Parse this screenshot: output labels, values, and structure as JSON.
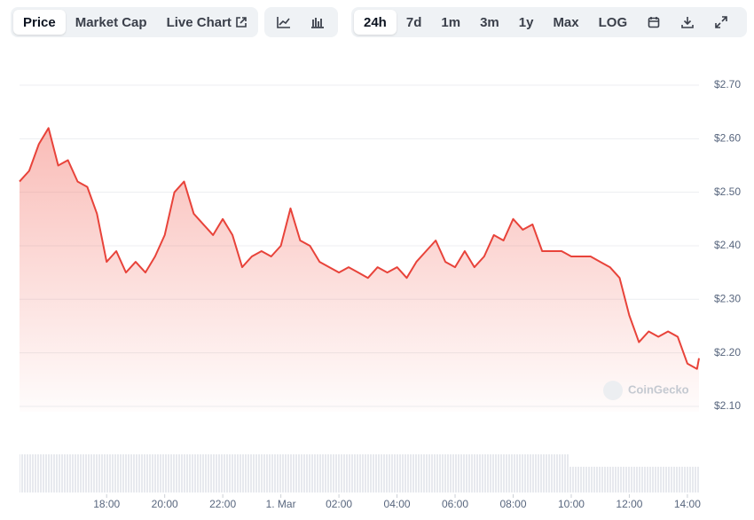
{
  "toolbar": {
    "view_tabs": [
      "Price",
      "Market Cap",
      "Live Chart"
    ],
    "ranges": [
      "24h",
      "7d",
      "1m",
      "3m",
      "1y",
      "Max",
      "LOG"
    ]
  },
  "chart_data": {
    "type": "line",
    "watermark": "CoinGecko",
    "x": [
      "15:00",
      "15:20",
      "15:40",
      "16:00",
      "16:20",
      "16:40",
      "17:00",
      "17:20",
      "17:40",
      "18:00",
      "18:20",
      "18:40",
      "19:00",
      "19:20",
      "19:40",
      "20:00",
      "20:20",
      "20:40",
      "21:00",
      "21:20",
      "21:40",
      "22:00",
      "22:20",
      "22:40",
      "23:00",
      "23:20",
      "23:40",
      "00:00",
      "00:20",
      "00:40",
      "01:00",
      "01:20",
      "01:40",
      "02:00",
      "02:20",
      "02:40",
      "03:00",
      "03:20",
      "03:40",
      "04:00",
      "04:20",
      "04:40",
      "05:00",
      "05:20",
      "05:40",
      "06:00",
      "06:20",
      "06:40",
      "07:00",
      "07:20",
      "07:40",
      "08:00",
      "08:20",
      "08:40",
      "09:00",
      "09:20",
      "09:40",
      "10:00",
      "10:20",
      "10:40",
      "11:00",
      "11:20",
      "11:40",
      "12:00",
      "12:20",
      "12:40",
      "13:00",
      "13:20",
      "13:40",
      "14:00",
      "14:20",
      "14:24"
    ],
    "series": [
      {
        "name": "Price",
        "color": "#e8433a",
        "values": [
          2.52,
          2.54,
          2.59,
          2.62,
          2.55,
          2.56,
          2.52,
          2.51,
          2.46,
          2.37,
          2.39,
          2.35,
          2.37,
          2.35,
          2.38,
          2.42,
          2.5,
          2.52,
          2.46,
          2.44,
          2.42,
          2.45,
          2.42,
          2.36,
          2.38,
          2.39,
          2.38,
          2.4,
          2.47,
          2.41,
          2.4,
          2.37,
          2.36,
          2.35,
          2.36,
          2.35,
          2.34,
          2.36,
          2.35,
          2.36,
          2.34,
          2.37,
          2.39,
          2.41,
          2.37,
          2.36,
          2.39,
          2.36,
          2.38,
          2.42,
          2.41,
          2.45,
          2.43,
          2.44,
          2.39,
          2.39,
          2.39,
          2.38,
          2.38,
          2.38,
          2.37,
          2.36,
          2.34,
          2.27,
          2.22,
          2.24,
          2.23,
          2.24,
          2.23,
          2.18,
          2.17,
          2.19
        ]
      }
    ],
    "xlim": [
      "15:00",
      "14:24"
    ],
    "xticks": [
      "18:00",
      "20:00",
      "22:00",
      {
        "value": "00:00",
        "label": "1. Mar"
      },
      "02:00",
      "04:00",
      "06:00",
      "08:00",
      "10:00",
      "12:00",
      "14:00"
    ],
    "ylim": [
      2.09,
      2.7
    ],
    "yticks": [
      {
        "value": 2.1,
        "label": "$2.10"
      },
      {
        "value": 2.2,
        "label": "$2.20"
      },
      {
        "value": 2.3,
        "label": "$2.30"
      },
      {
        "value": 2.4,
        "label": "$2.40"
      },
      {
        "value": 2.5,
        "label": "$2.50"
      },
      {
        "value": 2.6,
        "label": "$2.60"
      },
      {
        "value": 2.7,
        "label": "$2.70"
      }
    ],
    "grid": true
  }
}
